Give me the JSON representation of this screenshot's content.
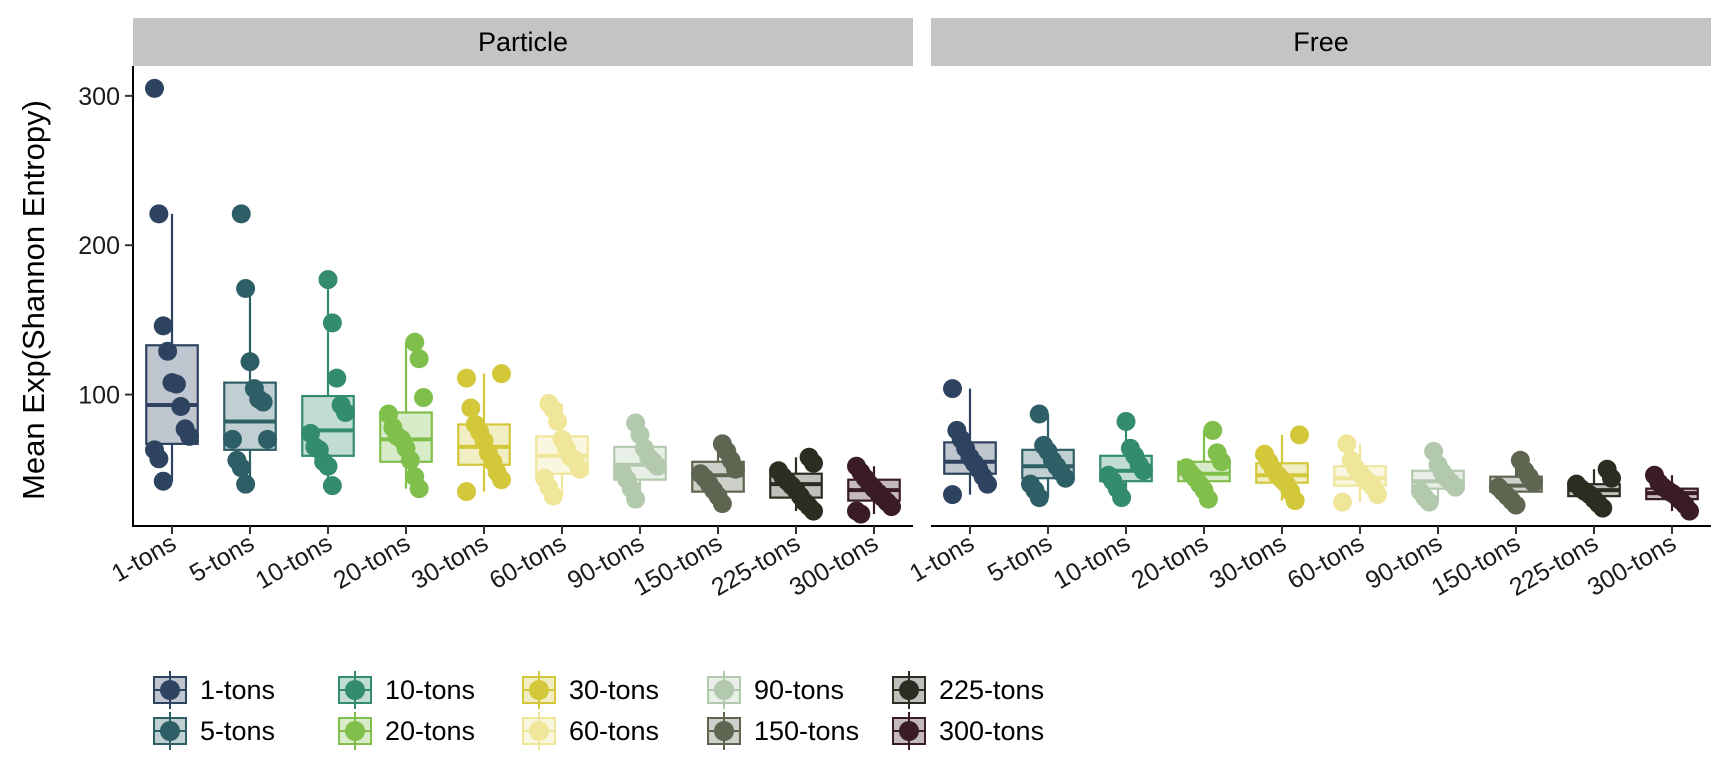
{
  "chart_data": {
    "type": "boxplot",
    "ylabel": "Mean Exp(Shannon Entropy)",
    "xlabel": "",
    "ylim": [
      12,
      320
    ],
    "yticks": [
      100,
      200,
      300
    ],
    "categories": [
      "1-tons",
      "5-tons",
      "10-tons",
      "20-tons",
      "30-tons",
      "60-tons",
      "90-tons",
      "150-tons",
      "225-tons",
      "300-tons"
    ],
    "colors": [
      "#2D435F",
      "#2F5F66",
      "#338D6C",
      "#80BF4C",
      "#D3C73A",
      "#F0E69A",
      "#B3C9AE",
      "#5E6651",
      "#2C2D22",
      "#3A1C25"
    ],
    "legend": {
      "position": "bottom",
      "labels": [
        "1-tons",
        "5-tons",
        "10-tons",
        "20-tons",
        "30-tons",
        "60-tons",
        "90-tons",
        "150-tons",
        "225-tons",
        "300-tons"
      ]
    },
    "panels": [
      {
        "name": "Particle",
        "boxes": [
          {
            "category": "1-tons",
            "q1": 67,
            "median": 93,
            "q3": 133,
            "whisker_low": 42,
            "whisker_high": 221,
            "points": [
              305,
              221,
              146,
              129,
              108,
              107,
              92,
              77,
              72,
              63,
              57,
              42
            ]
          },
          {
            "category": "5-tons",
            "q1": 63,
            "median": 82,
            "q3": 108,
            "whisker_low": 40,
            "whisker_high": 171,
            "points": [
              221,
              171,
              122,
              104,
              97,
              95,
              70,
              70,
              56,
              51,
              40
            ]
          },
          {
            "category": "10-tons",
            "q1": 59,
            "median": 76,
            "q3": 99,
            "whisker_low": 39,
            "whisker_high": 177,
            "points": [
              177,
              148,
              111,
              93,
              88,
              74,
              65,
              63,
              55,
              52,
              39
            ]
          },
          {
            "category": "20-tons",
            "q1": 55,
            "median": 70,
            "q3": 88,
            "whisker_low": 37,
            "whisker_high": 135,
            "points": [
              135,
              124,
              98,
              87,
              78,
              72,
              70,
              64,
              56,
              45,
              37
            ]
          },
          {
            "category": "30-tons",
            "q1": 53,
            "median": 65,
            "q3": 80,
            "whisker_low": 35,
            "whisker_high": 114,
            "points": [
              114,
              111,
              91,
              80,
              75,
              69,
              61,
              55,
              48,
              43,
              35
            ]
          },
          {
            "category": "60-tons",
            "q1": 47,
            "median": 59,
            "q3": 72,
            "whisker_low": 32,
            "whisker_high": 94,
            "points": [
              94,
              90,
              82,
              70,
              64,
              58,
              56,
              50,
              44,
              38,
              32
            ]
          },
          {
            "category": "90-tons",
            "q1": 43,
            "median": 53,
            "q3": 65,
            "whisker_low": 30,
            "whisker_high": 81,
            "points": [
              81,
              73,
              64,
              58,
              55,
              52,
              48,
              43,
              37,
              30
            ]
          },
          {
            "category": "150-tons",
            "q1": 35,
            "median": 46,
            "q3": 55,
            "whisker_low": 27,
            "whisker_high": 67,
            "points": [
              67,
              62,
              56,
              50,
              47,
              44,
              40,
              36,
              32,
              27
            ]
          },
          {
            "category": "225-tons",
            "q1": 31,
            "median": 40,
            "q3": 47,
            "whisker_low": 22,
            "whisker_high": 58,
            "points": [
              58,
              54,
              49,
              45,
              42,
              39,
              36,
              32,
              28,
              25,
              22
            ]
          },
          {
            "category": "300-tons",
            "q1": 29,
            "median": 36,
            "q3": 43,
            "whisker_low": 20,
            "whisker_high": 52,
            "points": [
              52,
              48,
              44,
              40,
              37,
              34,
              31,
              28,
              25,
              22,
              20
            ]
          }
        ]
      },
      {
        "name": "Free",
        "boxes": [
          {
            "category": "1-tons",
            "q1": 47,
            "median": 55,
            "q3": 68,
            "whisker_low": 33,
            "whisker_high": 104,
            "points": [
              104,
              76,
              70,
              64,
              58,
              54,
              50,
              45,
              40,
              33
            ]
          },
          {
            "category": "5-tons",
            "q1": 44,
            "median": 52,
            "q3": 63,
            "whisker_low": 31,
            "whisker_high": 87,
            "points": [
              87,
              66,
              62,
              56,
              52,
              48,
              44,
              40,
              36,
              31
            ]
          },
          {
            "category": "10-tons",
            "q1": 42,
            "median": 49,
            "q3": 59,
            "whisker_low": 31,
            "whisker_high": 82,
            "points": [
              82,
              64,
              59,
              53,
              49,
              46,
              42,
              37,
              31
            ]
          },
          {
            "category": "20-tons",
            "q1": 42,
            "median": 47,
            "q3": 55,
            "whisker_low": 30,
            "whisker_high": 76,
            "points": [
              76,
              61,
              55,
              51,
              47,
              44,
              40,
              36,
              30
            ]
          },
          {
            "category": "30-tons",
            "q1": 41,
            "median": 46,
            "q3": 54,
            "whisker_low": 29,
            "whisker_high": 73,
            "points": [
              73,
              60,
              55,
              50,
              46,
              43,
              40,
              35,
              29
            ]
          },
          {
            "category": "60-tons",
            "q1": 39,
            "median": 44,
            "q3": 52,
            "whisker_low": 28,
            "whisker_high": 67,
            "points": [
              67,
              56,
              51,
              47,
              44,
              41,
              38,
              33,
              28
            ]
          },
          {
            "category": "90-tons",
            "q1": 37,
            "median": 42,
            "q3": 49,
            "whisker_low": 28,
            "whisker_high": 62,
            "points": [
              62,
              53,
              48,
              44,
              41,
              38,
              35,
              31,
              28
            ]
          },
          {
            "category": "150-tons",
            "q1": 35,
            "median": 39,
            "q3": 45,
            "whisker_low": 26,
            "whisker_high": 56,
            "points": [
              56,
              49,
              45,
              41,
              38,
              35,
              32,
              29,
              26
            ]
          },
          {
            "category": "225-tons",
            "q1": 32,
            "median": 36,
            "q3": 40,
            "whisker_low": 24,
            "whisker_high": 50,
            "points": [
              50,
              44,
              40,
              37,
              35,
              33,
              30,
              27,
              24
            ]
          },
          {
            "category": "300-tons",
            "q1": 30,
            "median": 34,
            "q3": 37,
            "whisker_low": 22,
            "whisker_high": 46,
            "points": [
              46,
              41,
              38,
              36,
              34,
              32,
              29,
              26,
              22
            ]
          }
        ]
      }
    ]
  }
}
